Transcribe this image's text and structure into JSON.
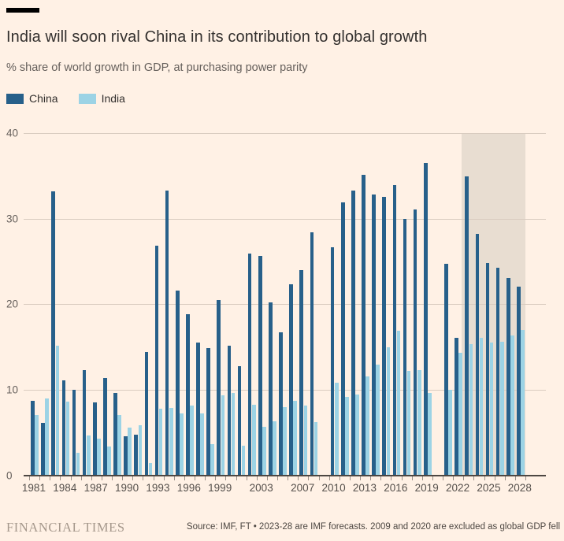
{
  "header": {
    "title": "India will soon rival China in its contribution to global growth",
    "subtitle": "% share of world growth in GDP, at purchasing power parity"
  },
  "legend": [
    {
      "label": "China",
      "color": "#27608A"
    },
    {
      "label": "India",
      "color": "#9CD3E5"
    }
  ],
  "chart_data": {
    "type": "bar",
    "title": "India will soon rival China in its contribution to global growth",
    "ylabel": "% share of world growth in GDP, at purchasing power parity",
    "ylim": [
      0,
      40
    ],
    "yticks": [
      0,
      10,
      20,
      30,
      40
    ],
    "grid": true,
    "legend_position": "top-left",
    "x_tick_labels": [
      1981,
      1984,
      1987,
      1990,
      1993,
      1996,
      1999,
      2003,
      2007,
      2010,
      2013,
      2016,
      2019,
      2022,
      2025,
      2028
    ],
    "years": [
      1981,
      1982,
      1983,
      1984,
      1985,
      1986,
      1987,
      1988,
      1989,
      1990,
      1991,
      1992,
      1993,
      1994,
      1995,
      1996,
      1997,
      1998,
      1999,
      2000,
      2001,
      2002,
      2003,
      2004,
      2005,
      2006,
      2007,
      2008,
      2009,
      2010,
      2011,
      2012,
      2013,
      2014,
      2015,
      2016,
      2017,
      2018,
      2019,
      2020,
      2021,
      2022,
      2023,
      2024,
      2025,
      2026,
      2027,
      2028
    ],
    "excluded_years": [
      2009,
      2020
    ],
    "forecast_band": {
      "start_year": 2023,
      "end_year": 2028,
      "color": "#E8DDD1"
    },
    "series": [
      {
        "name": "China",
        "color": "#27608A",
        "values": [
          8.7,
          6.1,
          33.2,
          11.1,
          10.0,
          12.3,
          8.5,
          11.3,
          9.6,
          4.5,
          4.7,
          14.4,
          26.8,
          33.3,
          21.6,
          18.8,
          15.5,
          14.8,
          20.5,
          15.1,
          12.7,
          25.9,
          25.6,
          20.2,
          16.7,
          22.3,
          24.0,
          28.4,
          null,
          26.6,
          31.9,
          33.3,
          35.1,
          32.8,
          32.5,
          33.9,
          30.0,
          31.1,
          36.5,
          null,
          24.7,
          16.0,
          34.9,
          28.2,
          24.8,
          24.2,
          23.0,
          22.0
        ]
      },
      {
        "name": "India",
        "color": "#9CD3E5",
        "values": [
          7.0,
          8.9,
          15.1,
          8.6,
          2.6,
          4.6,
          4.2,
          3.3,
          7.0,
          5.5,
          5.8,
          1.4,
          7.7,
          7.8,
          7.2,
          8.1,
          7.2,
          3.6,
          9.3,
          9.6,
          3.4,
          8.2,
          5.6,
          6.3,
          7.9,
          8.7,
          8.1,
          6.2,
          null,
          10.8,
          9.1,
          9.4,
          11.5,
          12.9,
          14.9,
          16.9,
          12.2,
          12.3,
          9.6,
          null,
          10.0,
          14.3,
          15.3,
          16.0,
          15.5,
          15.6,
          16.3,
          17.0
        ]
      }
    ]
  },
  "footer": {
    "brand": "FINANCIAL TIMES",
    "source": "Source: IMF, FT • 2023-28 are IMF forecasts. 2009 and 2020 are excluded as global GDP fell"
  }
}
